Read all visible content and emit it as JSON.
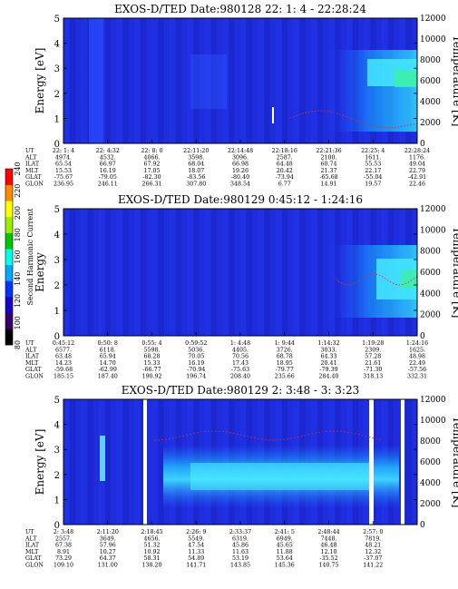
{
  "colorbar": {
    "label": "Second Harmonic Current",
    "ticks": [
      "80",
      "100",
      "120",
      "140",
      "160",
      "180",
      "200",
      "220",
      "240"
    ],
    "colors": [
      "#000000",
      "#3a006a",
      "#1b00c8",
      "#0033ff",
      "#00a8ff",
      "#00ffe8",
      "#00c800",
      "#9bef00",
      "#ffff00",
      "#ff8a00",
      "#ff0000"
    ]
  },
  "chart_data": [
    {
      "type": "heatmap",
      "title": "EXOS-D/TED   Date:980128  22: 1: 4 - 22:28:24",
      "ylabel": "Energy [eV]",
      "ylabel_right": "Temperature [K]",
      "ylim": [
        0,
        5
      ],
      "ylim_right": [
        0,
        12000
      ],
      "yticks": [
        "0",
        "1",
        "2",
        "3",
        "4",
        "5"
      ],
      "yticks_right": [
        "0",
        "2000",
        "4000",
        "6000",
        "8000",
        "10000",
        "12000"
      ],
      "table_labels": [
        "UT",
        "ALT",
        "ILAT",
        "MLT",
        "GLAT",
        "GLON"
      ],
      "columns": [
        [
          "22: 1: 4",
          "4974.",
          "65.54",
          "15.53",
          "-75.67",
          "236.95"
        ],
        [
          "22: 4:32",
          "4532.",
          "66.97",
          "16.19",
          "-79.05",
          "246.11"
        ],
        [
          "22: 8: 0",
          "4066.",
          "67.92",
          "17.05",
          "-82.30",
          "266.31"
        ],
        [
          "22:11:20",
          "3598.",
          "68.04",
          "18.07",
          "-83.56",
          "307.80"
        ],
        [
          "22:14:48",
          "3096.",
          "66.98",
          "19.26",
          "-80.40",
          "348.54"
        ],
        [
          "22:18:16",
          "2587.",
          "64.48",
          "20.42",
          "-73.94",
          "6.77"
        ],
        [
          "22:21:36",
          "2100.",
          "60.74",
          "21.37",
          "-65.68",
          "14.91"
        ],
        [
          "22:25: 4",
          "1611.",
          "55.53",
          "22.17",
          "-55.04",
          "19.57"
        ],
        [
          "22:28:24",
          "1176.",
          "49.04",
          "22.79",
          "-42.91",
          "22.46"
        ]
      ]
    },
    {
      "type": "heatmap",
      "title": "EXOS-D/TED   Date:980129   0:45:12 - 1:24:16",
      "ylabel": "Energy",
      "ylabel_right": "Temperature [K]",
      "ylim": [
        0,
        5
      ],
      "ylim_right": [
        0,
        12000
      ],
      "yticks": [
        "0",
        "1",
        "2",
        "3",
        "4",
        "5"
      ],
      "yticks_right": [
        "0",
        "2000",
        "4000",
        "6000",
        "8000",
        "10000",
        "12000"
      ],
      "table_labels": [
        "UT",
        "ALT",
        "ILAT",
        "MLT",
        "GLAT",
        "GLON"
      ],
      "columns": [
        [
          "0:45:12",
          "6577.",
          "63.48",
          "14.23",
          "-59.68",
          "185.15"
        ],
        [
          "0:50: 8",
          "6118.",
          "65.94",
          "14.70",
          "-62.99",
          "187.40"
        ],
        [
          "0:55: 4",
          "5598.",
          "68.28",
          "15.33",
          "-66.77",
          "190.92"
        ],
        [
          "0:59:52",
          "5036.",
          "70.05",
          "16.19",
          "-70.94",
          "196.74"
        ],
        [
          "1: 4:48",
          "4405.",
          "70.56",
          "17.43",
          "-75.63",
          "208.40"
        ],
        [
          "1: 9:44",
          "3726.",
          "68.78",
          "18.95",
          "-79.77",
          "235.66"
        ],
        [
          "1:14:32",
          "3033.",
          "64.33",
          "20.41",
          "-79.39",
          "284.40"
        ],
        [
          "1:19:28",
          "2309.",
          "57.28",
          "21.61",
          "-71.30",
          "318.13"
        ],
        [
          "1:24:16",
          "1625.",
          "48.98",
          "22.49",
          "-57.56",
          "332.31"
        ]
      ]
    },
    {
      "type": "heatmap",
      "title": "EXOS-D/TED   Date:980129  2: 3:48 - 3: 3:23",
      "ylabel": "Energy [eV]",
      "ylabel_right": "Temperature [K]",
      "ylim": [
        0,
        5
      ],
      "ylim_right": [
        0,
        12000
      ],
      "yticks": [
        "0",
        "1",
        "2",
        "3",
        "4",
        "5"
      ],
      "yticks_right": [
        "0",
        "2000",
        "4000",
        "6000",
        "8000",
        "10000",
        "12000"
      ],
      "table_labels": [
        "UT",
        "ALT",
        "ILAT",
        "MLT",
        "GLAT",
        "GLON"
      ],
      "columns": [
        [
          "2: 3:48",
          "2557.",
          "67.38",
          "8.91",
          "73.29",
          "109.10"
        ],
        [
          "2:11:20",
          "3649.",
          "57.96",
          "10.27",
          "64.37",
          "131.00"
        ],
        [
          "2:18:45",
          "4656.",
          "51.32",
          "10.92",
          "58.31",
          "138.20"
        ],
        [
          "2:26: 9",
          "5549.",
          "47.54",
          "11.33",
          "54.89",
          "141.71"
        ],
        [
          "2:33:37",
          "6319.",
          "45.86",
          "11.63",
          "53.19",
          "143.85"
        ],
        [
          "2:41: 5",
          "6949.",
          "45.65",
          "11.88",
          "53.64",
          "145.36"
        ],
        [
          "2:48:44",
          "7448.",
          "46.48",
          "12.10",
          "-35.52",
          "140.75"
        ],
        [
          "2:57: 0",
          "7819.",
          "48.21",
          "12.32",
          "-37.07",
          "141.22"
        ]
      ]
    }
  ]
}
